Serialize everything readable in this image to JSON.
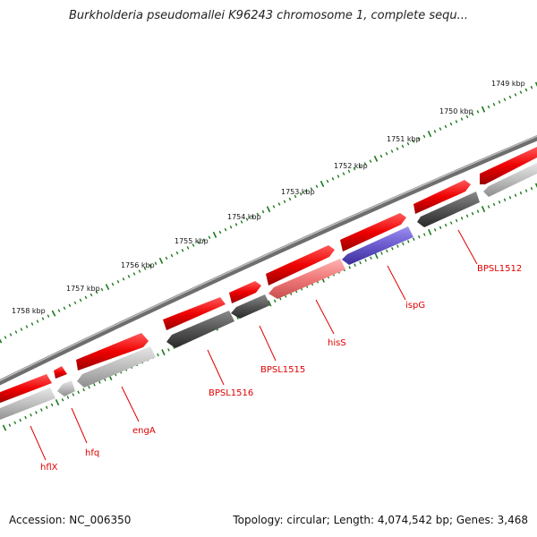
{
  "title": "Burkholderia pseudomallei K96243 chromosome 1, complete sequ...",
  "accession": "Accession: NC_006350",
  "summary": "Topology: circular; Length: 4,074,542 bp; Genes: 3,468",
  "colors": {
    "backbone": "#808080",
    "forward_gene": "#e00000",
    "reverse_gene_dark": "#505050",
    "reverse_gene_light": "#b8b8b8",
    "highlight_pink": "#f08080",
    "highlight_blue": "#6a5acd",
    "tick": "#1a7a1a",
    "label": "#e00000"
  },
  "ruler": {
    "unit": "kbp",
    "labels": [
      "1749 kbp",
      "1750 kbp",
      "1751 kbp",
      "1752 kbp",
      "1753 kbp",
      "1754 kbp",
      "1755 kbp",
      "1756 kbp",
      "1757 kbp",
      "1758 kbp"
    ]
  },
  "gene_labels": [
    "BPSL1512",
    "ispG",
    "hisS",
    "BPSL1515",
    "BPSL1516",
    "engA",
    "hfq",
    "hflX"
  ]
}
